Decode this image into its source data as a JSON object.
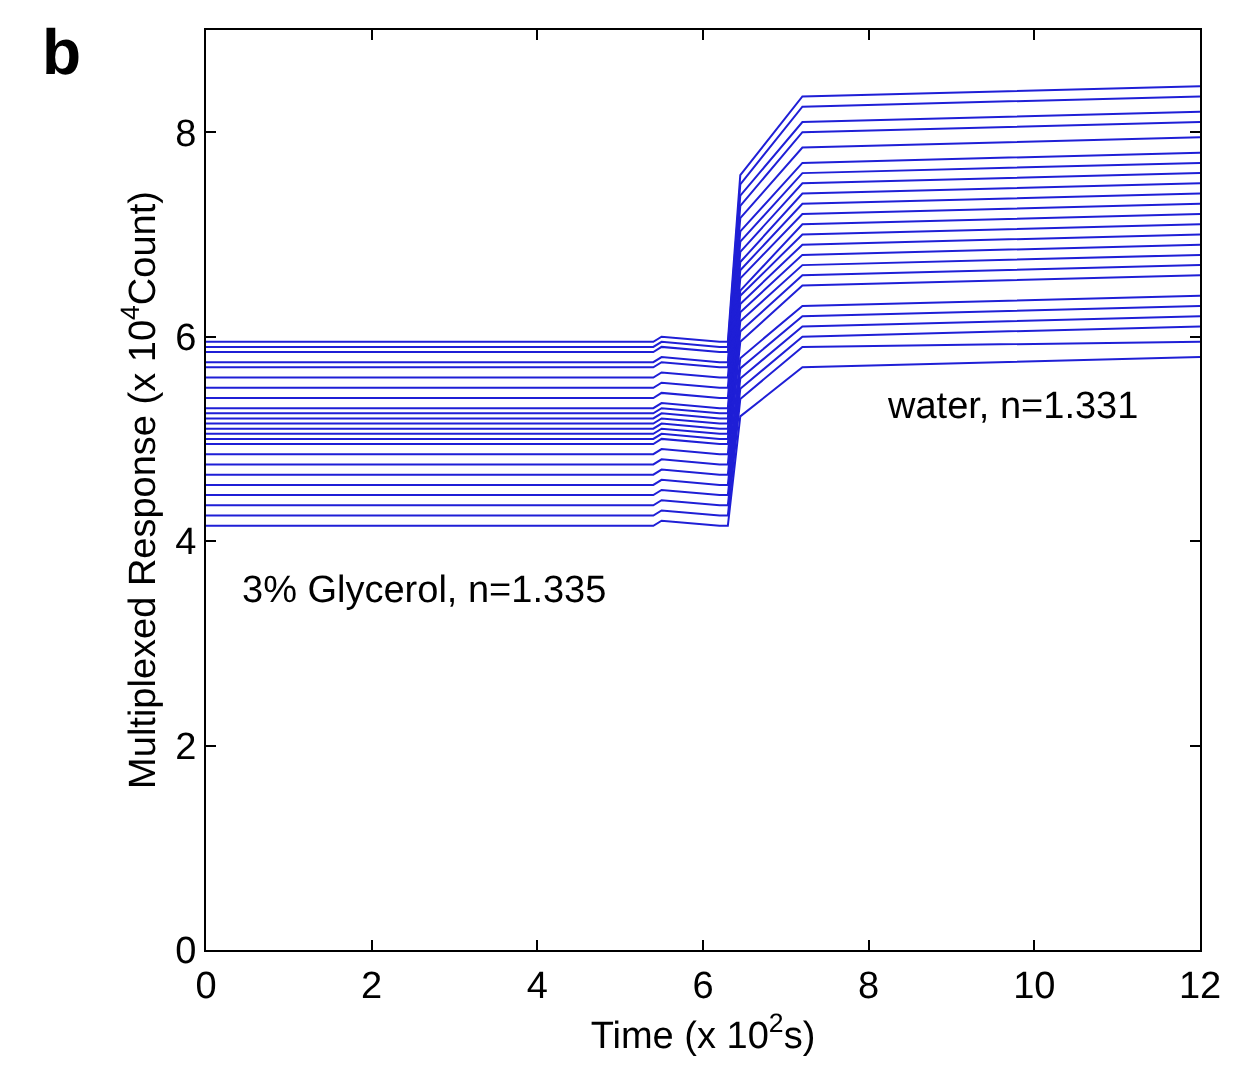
{
  "chart_data": {
    "type": "line",
    "xlabel": "Time (x 10$^{2}$s)",
    "ylabel": "Multiplexed Response (x 10$^{4}$Count)",
    "annotations": [
      "b",
      "water, n=1.331",
      "3% Glycerol, n=1.335"
    ],
    "x": [
      0,
      3,
      5.4,
      5.5,
      6.2,
      6.3,
      6.45,
      7.2,
      12
    ],
    "color": "#1f1fd6",
    "marker": "none",
    "line_style": "solid",
    "xlim": [
      0,
      12
    ],
    "xticks": [
      0,
      2,
      4,
      6,
      8,
      10,
      12
    ],
    "ylim": [
      0,
      9
    ],
    "yticks": [
      0,
      2,
      4,
      6,
      8
    ],
    "series": [
      {
        "values": [
          4.15,
          4.15,
          4.15,
          4.2,
          4.15,
          4.15,
          5.22,
          5.7,
          5.8
        ]
      },
      {
        "values": [
          4.25,
          4.25,
          4.25,
          4.3,
          4.25,
          4.25,
          5.39,
          5.9,
          5.95
        ]
      },
      {
        "values": [
          4.35,
          4.35,
          4.35,
          4.4,
          4.35,
          4.35,
          5.49,
          6.0,
          6.1
        ]
      },
      {
        "values": [
          4.45,
          4.45,
          4.45,
          4.5,
          4.45,
          4.45,
          5.59,
          6.1,
          6.2
        ]
      },
      {
        "values": [
          4.55,
          4.55,
          4.55,
          4.6,
          4.55,
          4.55,
          5.69,
          6.2,
          6.3
        ]
      },
      {
        "values": [
          4.65,
          4.65,
          4.65,
          4.7,
          4.65,
          4.65,
          5.79,
          6.3,
          6.4
        ]
      },
      {
        "values": [
          4.75,
          4.75,
          4.75,
          4.8,
          4.75,
          4.75,
          5.95,
          6.5,
          6.6
        ]
      },
      {
        "values": [
          4.85,
          4.85,
          4.85,
          4.9,
          4.85,
          4.85,
          6.05,
          6.6,
          6.7
        ]
      },
      {
        "values": [
          4.95,
          4.95,
          4.95,
          5.0,
          4.95,
          4.95,
          6.15,
          6.7,
          6.8
        ]
      },
      {
        "values": [
          5.0,
          5.0,
          5.0,
          5.05,
          5.0,
          5.0,
          6.24,
          6.8,
          6.9
        ]
      },
      {
        "values": [
          5.05,
          5.05,
          5.05,
          5.1,
          5.05,
          5.05,
          6.32,
          6.9,
          7.0
        ]
      },
      {
        "values": [
          5.1,
          5.1,
          5.1,
          5.15,
          5.1,
          5.1,
          6.4,
          7.0,
          7.1
        ]
      },
      {
        "values": [
          5.15,
          5.15,
          5.15,
          5.2,
          5.15,
          5.15,
          6.45,
          7.1,
          7.2
        ]
      },
      {
        "values": [
          5.2,
          5.2,
          5.2,
          5.25,
          5.2,
          5.2,
          6.57,
          7.2,
          7.3
        ]
      },
      {
        "values": [
          5.25,
          5.25,
          5.25,
          5.3,
          5.25,
          5.25,
          6.65,
          7.3,
          7.4
        ]
      },
      {
        "values": [
          5.3,
          5.3,
          5.3,
          5.35,
          5.3,
          5.3,
          6.73,
          7.4,
          7.5
        ]
      },
      {
        "values": [
          5.4,
          5.4,
          5.4,
          5.45,
          5.4,
          5.4,
          6.83,
          7.5,
          7.6
        ]
      },
      {
        "values": [
          5.5,
          5.5,
          5.5,
          5.55,
          5.5,
          5.5,
          6.93,
          7.6,
          7.7
        ]
      },
      {
        "values": [
          5.6,
          5.6,
          5.6,
          5.65,
          5.6,
          5.6,
          7.03,
          7.7,
          7.8
        ]
      },
      {
        "values": [
          5.7,
          5.7,
          5.7,
          5.75,
          5.7,
          5.7,
          7.16,
          7.85,
          7.95
        ]
      },
      {
        "values": [
          5.75,
          5.75,
          5.75,
          5.8,
          5.75,
          5.75,
          7.28,
          8.0,
          8.1
        ]
      },
      {
        "values": [
          5.85,
          5.85,
          5.85,
          5.9,
          5.85,
          5.85,
          7.38,
          8.1,
          8.2
        ]
      },
      {
        "values": [
          5.9,
          5.9,
          5.9,
          5.95,
          5.9,
          5.9,
          7.49,
          8.25,
          8.35
        ]
      },
      {
        "values": [
          5.95,
          5.95,
          5.95,
          6.0,
          5.95,
          5.95,
          7.58,
          8.35,
          8.45
        ]
      }
    ]
  }
}
